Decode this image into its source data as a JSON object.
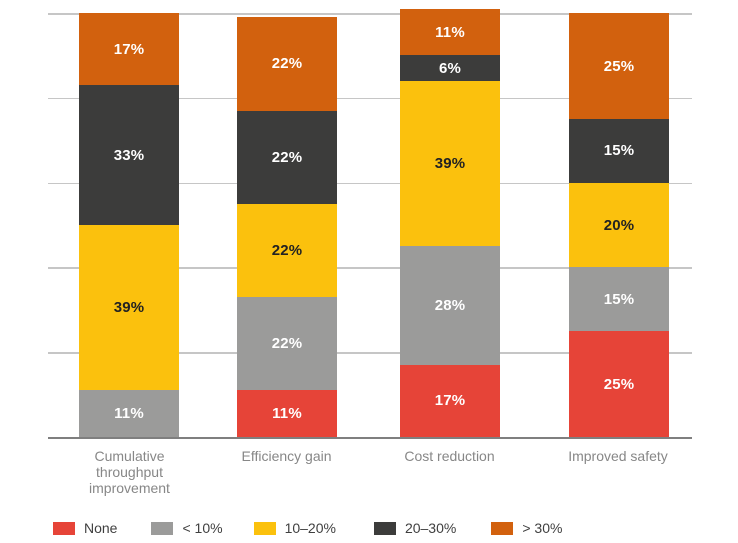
{
  "chart_data": {
    "type": "bar",
    "stacked": true,
    "orientation": "vertical",
    "title": "",
    "xlabel": "",
    "ylabel": "",
    "ylim": [
      0,
      100
    ],
    "grid": true,
    "gridline_interval_pct": 20,
    "legend_position": "bottom",
    "value_suffix": "%",
    "categories": [
      "Cumulative throughput improvement",
      "Efficiency gain",
      "Cost reduction",
      "Improved safety"
    ],
    "series": [
      {
        "name": "None",
        "color": "#e64438",
        "label_color": "#ffffff",
        "values": [
          0,
          11,
          17,
          25
        ]
      },
      {
        "name": "< 10%",
        "color": "#9b9b9a",
        "label_color": "#ffffff",
        "values": [
          11,
          22,
          28,
          15
        ]
      },
      {
        "name": "10–20%",
        "color": "#fbc10d",
        "label_color": "#222222",
        "values": [
          39,
          22,
          39,
          20
        ]
      },
      {
        "name": "20–30%",
        "color": "#3c3c3b",
        "label_color": "#ffffff",
        "values": [
          33,
          22,
          6,
          15
        ]
      },
      {
        "name": "> 30%",
        "color": "#d2610e",
        "label_color": "#ffffff",
        "values": [
          17,
          22,
          11,
          25
        ]
      }
    ]
  },
  "colors": {
    "gridline": "#c6c6c6",
    "axis_line": "#7f7f7f",
    "category_label": "#878787",
    "legend_label": "#3f3f3f"
  }
}
